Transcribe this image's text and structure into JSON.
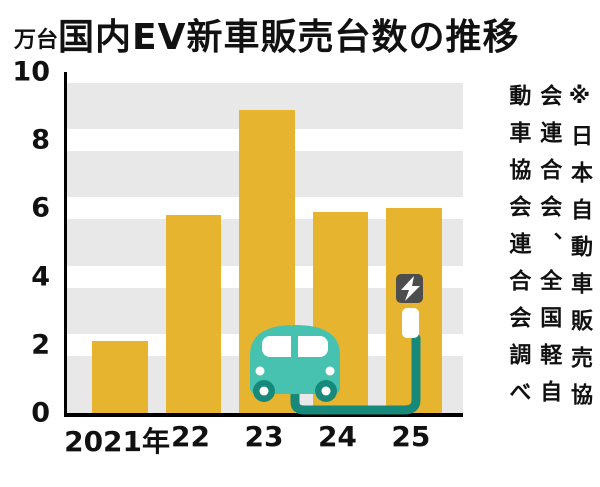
{
  "header": {
    "unit": "万台",
    "title": "国内EV新車販売台数の推移"
  },
  "source_note": "※日本自動車販売協会連合会、全国軽自動車協会連合会調べ",
  "colors": {
    "bar": "#E7B42F",
    "stripe_bg": "#E8E8E8",
    "car_body": "#47C2B1",
    "car_dark": "#17897B",
    "cable": "#17897B",
    "bolt_bg": "#4D4D4D",
    "axis": "#000000"
  },
  "chart_data": {
    "type": "bar",
    "title": "国内EV新車販売台数の推移",
    "ylabel": "万台",
    "categories": [
      "2021年",
      "22",
      "23",
      "24",
      "25"
    ],
    "values": [
      2.1,
      5.8,
      8.9,
      5.9,
      6.0
    ],
    "ylim": [
      0,
      10
    ],
    "yticks": [
      0,
      2,
      4,
      6,
      8,
      10
    ],
    "grid": "striped-horizontal-bands",
    "legend": "none"
  }
}
